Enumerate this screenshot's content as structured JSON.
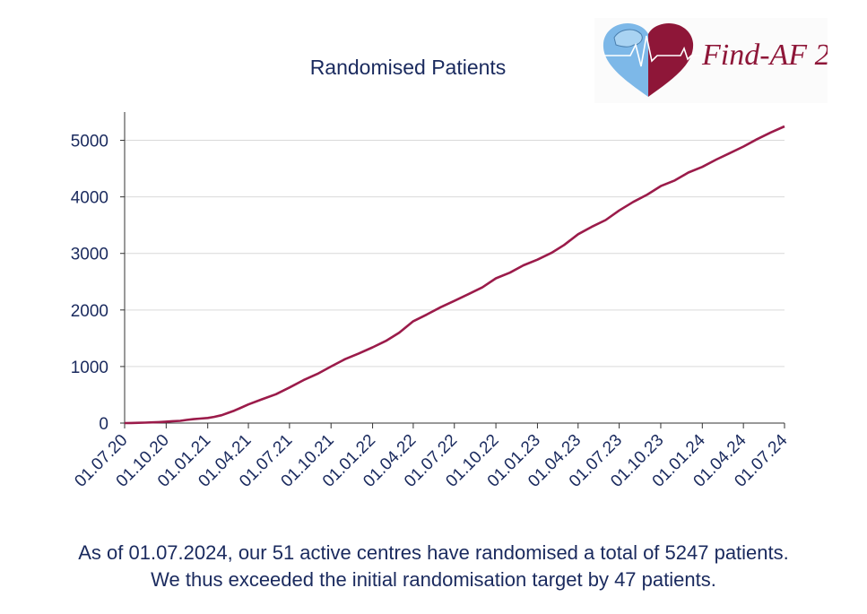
{
  "chart_data": {
    "type": "line",
    "title": "Randomised Patients",
    "xlabel": "",
    "ylabel": "",
    "ylim": [
      0,
      5500
    ],
    "yticks": [
      0,
      1000,
      2000,
      3000,
      4000,
      5000
    ],
    "xticks": [
      "01.07.20",
      "01.10.20",
      "01.01.21",
      "01.04.21",
      "01.07.21",
      "01.10.21",
      "01.01.22",
      "01.04.22",
      "01.07.22",
      "01.10.22",
      "01.01.23",
      "01.04.23",
      "01.07.23",
      "01.10.23",
      "01.01.24",
      "01.04.24",
      "01.07.24"
    ],
    "grid": "horizontal",
    "line_color": "#9b1b4a",
    "series": [
      {
        "x": [
          "01.07.20",
          "15.07.20",
          "01.08.20",
          "15.08.20",
          "01.09.20",
          "15.09.20",
          "01.10.20",
          "15.10.20",
          "01.11.20",
          "15.11.20",
          "01.12.20",
          "15.12.20",
          "01.01.21",
          "15.01.21",
          "01.02.21",
          "15.02.21",
          "01.03.21",
          "15.03.21",
          "01.04.21",
          "01.05.21",
          "01.06.21",
          "01.07.21",
          "01.08.21",
          "01.09.21",
          "01.10.21",
          "01.11.21",
          "01.12.21",
          "01.01.22",
          "01.02.22",
          "01.03.22",
          "01.04.22",
          "01.05.22",
          "01.06.22",
          "01.07.22",
          "01.08.22",
          "01.09.22",
          "01.10.22",
          "01.11.22",
          "01.12.22",
          "01.01.23",
          "01.02.23",
          "01.03.23",
          "01.04.23",
          "01.05.23",
          "01.06.23",
          "01.07.23",
          "01.08.23",
          "01.09.23",
          "01.10.23",
          "01.11.23",
          "01.12.23",
          "01.01.24",
          "01.02.24",
          "01.03.24",
          "01.04.24",
          "01.05.24",
          "01.06.24",
          "01.07.24"
        ],
        "values": [
          0,
          2,
          5,
          8,
          12,
          18,
          25,
          33,
          40,
          55,
          70,
          80,
          90,
          110,
          140,
          180,
          220,
          270,
          330,
          420,
          510,
          630,
          760,
          870,
          1000,
          1130,
          1230,
          1340,
          1460,
          1600,
          1800,
          1920,
          2050,
          2160,
          2280,
          2400,
          2560,
          2660,
          2790,
          2890,
          3010,
          3150,
          3340,
          3470,
          3590,
          3760,
          3910,
          4040,
          4190,
          4290,
          4430,
          4530,
          4660,
          4770,
          4890,
          5020,
          5140,
          5247
        ]
      }
    ]
  },
  "logo": {
    "text": "Find-AF 2",
    "colors": {
      "light": "#7db8e8",
      "dark": "#8e1638"
    }
  },
  "footer": {
    "line1": "As of 01.07.2024, our 51 active centres have randomised a total of 5247 patients.",
    "line2": "We thus exceeded the initial randomisation target by 47 patients."
  }
}
